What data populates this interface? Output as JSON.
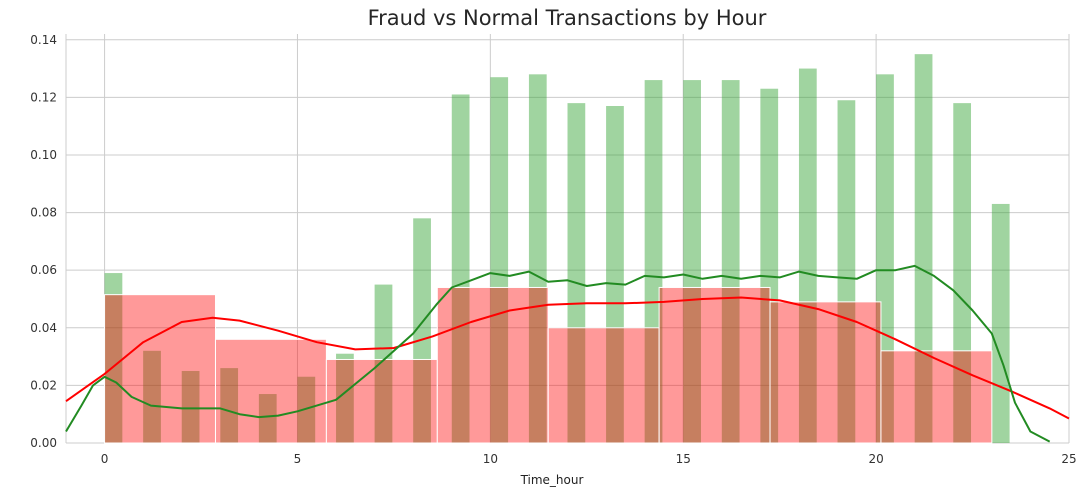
{
  "chart_data": {
    "type": "bar",
    "title": "Fraud vs Normal Transactions by Hour",
    "xlabel": "Time_hour",
    "ylabel": "",
    "xlim": [
      -1,
      25
    ],
    "ylim": [
      0,
      0.142
    ],
    "xticks": [
      0,
      5,
      10,
      15,
      20,
      25
    ],
    "yticks": [
      0.0,
      0.02,
      0.04,
      0.06,
      0.08,
      0.1,
      0.12,
      0.14
    ],
    "grid": true,
    "legend": "none",
    "series": [
      {
        "kind": "histogram",
        "color": "#2ca02c",
        "bin_width": 0.46,
        "bins": [
          {
            "x": 0,
            "y": 0.059
          },
          {
            "x": 1,
            "y": 0.032
          },
          {
            "x": 2,
            "y": 0.025
          },
          {
            "x": 3,
            "y": 0.026
          },
          {
            "x": 4,
            "y": 0.017
          },
          {
            "x": 5,
            "y": 0.023
          },
          {
            "x": 6,
            "y": 0.031
          },
          {
            "x": 7,
            "y": 0.055
          },
          {
            "x": 8,
            "y": 0.078
          },
          {
            "x": 9,
            "y": 0.121
          },
          {
            "x": 10,
            "y": 0.127
          },
          {
            "x": 11,
            "y": 0.128
          },
          {
            "x": 12,
            "y": 0.118
          },
          {
            "x": 13,
            "y": 0.117
          },
          {
            "x": 14,
            "y": 0.126
          },
          {
            "x": 15,
            "y": 0.126
          },
          {
            "x": 16,
            "y": 0.126
          },
          {
            "x": 17,
            "y": 0.123
          },
          {
            "x": 18,
            "y": 0.13
          },
          {
            "x": 19,
            "y": 0.119
          },
          {
            "x": 20,
            "y": 0.128
          },
          {
            "x": 21,
            "y": 0.135
          },
          {
            "x": 22,
            "y": 0.118
          },
          {
            "x": 23,
            "y": 0.083
          }
        ]
      },
      {
        "kind": "histogram",
        "color": "#ff0000",
        "bins": [
          {
            "x0": 0.0,
            "x1": 2.875,
            "y": 0.0515
          },
          {
            "x0": 2.875,
            "x1": 5.75,
            "y": 0.036
          },
          {
            "x0": 5.75,
            "x1": 8.625,
            "y": 0.029
          },
          {
            "x0": 8.625,
            "x1": 11.5,
            "y": 0.054
          },
          {
            "x0": 11.5,
            "x1": 14.375,
            "y": 0.04
          },
          {
            "x0": 14.375,
            "x1": 17.25,
            "y": 0.054
          },
          {
            "x0": 17.25,
            "x1": 20.125,
            "y": 0.049
          },
          {
            "x0": 20.125,
            "x1": 23.0,
            "y": 0.032
          }
        ]
      },
      {
        "kind": "kde",
        "color": "#228b22",
        "points": [
          [
            -1,
            0.004
          ],
          [
            -0.6,
            0.013
          ],
          [
            -0.3,
            0.02
          ],
          [
            0,
            0.023
          ],
          [
            0.3,
            0.021
          ],
          [
            0.7,
            0.016
          ],
          [
            1.2,
            0.013
          ],
          [
            2,
            0.012
          ],
          [
            3,
            0.012
          ],
          [
            3.5,
            0.01
          ],
          [
            4,
            0.009
          ],
          [
            4.5,
            0.0095
          ],
          [
            5,
            0.011
          ],
          [
            6,
            0.015
          ],
          [
            7,
            0.026
          ],
          [
            8,
            0.038
          ],
          [
            8.6,
            0.048
          ],
          [
            9,
            0.054
          ],
          [
            9.5,
            0.0565
          ],
          [
            10,
            0.059
          ],
          [
            10.5,
            0.058
          ],
          [
            11,
            0.0595
          ],
          [
            11.5,
            0.056
          ],
          [
            12,
            0.0565
          ],
          [
            12.5,
            0.0545
          ],
          [
            13,
            0.0555
          ],
          [
            13.5,
            0.055
          ],
          [
            14,
            0.058
          ],
          [
            14.5,
            0.0575
          ],
          [
            15,
            0.0585
          ],
          [
            15.5,
            0.057
          ],
          [
            16,
            0.058
          ],
          [
            16.5,
            0.057
          ],
          [
            17,
            0.058
          ],
          [
            17.5,
            0.0575
          ],
          [
            18,
            0.0595
          ],
          [
            18.5,
            0.058
          ],
          [
            19,
            0.0575
          ],
          [
            19.5,
            0.057
          ],
          [
            20,
            0.06
          ],
          [
            20.5,
            0.06
          ],
          [
            21,
            0.0615
          ],
          [
            21.5,
            0.058
          ],
          [
            22,
            0.053
          ],
          [
            22.5,
            0.046
          ],
          [
            23,
            0.038
          ],
          [
            23.3,
            0.027
          ],
          [
            23.6,
            0.014
          ],
          [
            24,
            0.004
          ],
          [
            24.5,
            0.0005
          ]
        ]
      },
      {
        "kind": "kde",
        "color": "#ff0000",
        "points": [
          [
            -1,
            0.0145
          ],
          [
            0,
            0.024
          ],
          [
            1,
            0.035
          ],
          [
            2,
            0.042
          ],
          [
            2.8,
            0.0435
          ],
          [
            3.5,
            0.0425
          ],
          [
            4.5,
            0.039
          ],
          [
            5.5,
            0.035
          ],
          [
            6.5,
            0.0325
          ],
          [
            7.5,
            0.033
          ],
          [
            8.5,
            0.037
          ],
          [
            9.5,
            0.042
          ],
          [
            10.5,
            0.046
          ],
          [
            11.5,
            0.048
          ],
          [
            12.5,
            0.0485
          ],
          [
            13.5,
            0.0485
          ],
          [
            14.5,
            0.049
          ],
          [
            15.5,
            0.05
          ],
          [
            16.5,
            0.0505
          ],
          [
            17.5,
            0.0495
          ],
          [
            18.5,
            0.0465
          ],
          [
            19.5,
            0.042
          ],
          [
            20.5,
            0.036
          ],
          [
            21.5,
            0.0295
          ],
          [
            22.5,
            0.0235
          ],
          [
            23.5,
            0.018
          ],
          [
            24.5,
            0.012
          ],
          [
            25,
            0.0085
          ]
        ]
      }
    ]
  }
}
